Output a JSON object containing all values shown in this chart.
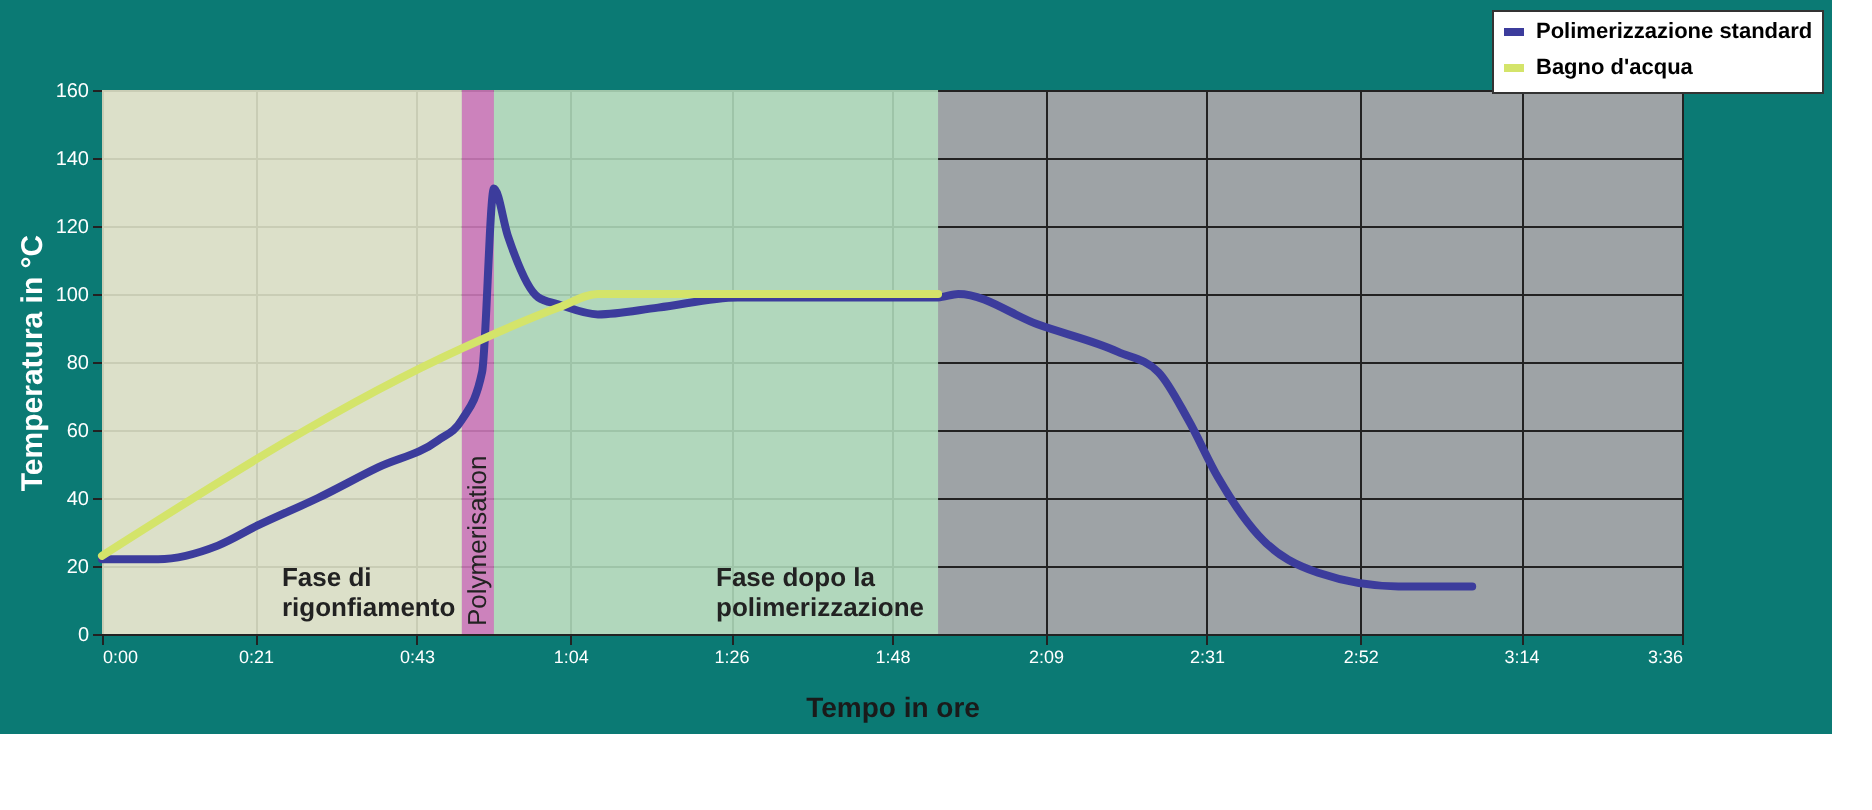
{
  "chart_data": {
    "type": "line",
    "xlabel": "Tempo in ore",
    "ylabel": "Temperatura in °C",
    "xlim": [
      0,
      3.6
    ],
    "ylim": [
      0,
      160
    ],
    "xticks": [
      {
        "value": 0,
        "label": "0:00"
      },
      {
        "value": 0.35,
        "label": "0:21"
      },
      {
        "value": 0.7167,
        "label": "0:43"
      },
      {
        "value": 1.0667,
        "label": "1:04"
      },
      {
        "value": 1.4333,
        "label": "1:26"
      },
      {
        "value": 1.8,
        "label": "1:48"
      },
      {
        "value": 2.15,
        "label": "2:09"
      },
      {
        "value": 2.5167,
        "label": "2:31"
      },
      {
        "value": 2.8667,
        "label": "2:52"
      },
      {
        "value": 3.2333,
        "label": "3:14"
      },
      {
        "value": 3.6,
        "label": "3:36"
      }
    ],
    "yticks": [
      0,
      20,
      40,
      60,
      80,
      100,
      120,
      140,
      160
    ],
    "series": [
      {
        "name": "Polimerizzazione standard",
        "color": "#3c3c9c",
        "x": [
          0,
          0.128,
          0.264,
          0.356,
          0.492,
          0.629,
          0.766,
          0.82,
          0.866,
          0.893,
          0.925,
          0.994,
          1.039,
          1.13,
          1.267,
          1.449,
          1.905,
          1.951,
          2.133,
          2.315,
          2.407,
          2.475,
          2.543,
          2.635,
          2.771,
          2.954,
          3.122
        ],
        "values": [
          22,
          22,
          26,
          32,
          40,
          49,
          57,
          63,
          77,
          131,
          117,
          99,
          97,
          94,
          96,
          99,
          99,
          100,
          91,
          83,
          77,
          63,
          46,
          29,
          18,
          14,
          14
        ]
      },
      {
        "name": "Bagno d'acqua",
        "color": "#d4e46a",
        "x": [
          0,
          0.82,
          1.04,
          1.13,
          1.905
        ],
        "values": [
          23,
          84,
          96,
          100,
          100
        ]
      }
    ],
    "bands": [
      {
        "axis": "x",
        "from": 0,
        "to": 0.82,
        "label": "Fase di\nrigonfiamento",
        "color": "#e6ebcf"
      },
      {
        "axis": "x",
        "from": 0.82,
        "to": 0.893,
        "label": "Polymerisation",
        "color": "#d47cc0"
      },
      {
        "axis": "x",
        "from": 0.893,
        "to": 1.905,
        "label": "Fase dopo la\npolimerizzazione",
        "color": "#b4e0c0"
      }
    ],
    "grid": true,
    "legend": "top right",
    "line_style": "solid",
    "marker": "none"
  }
}
